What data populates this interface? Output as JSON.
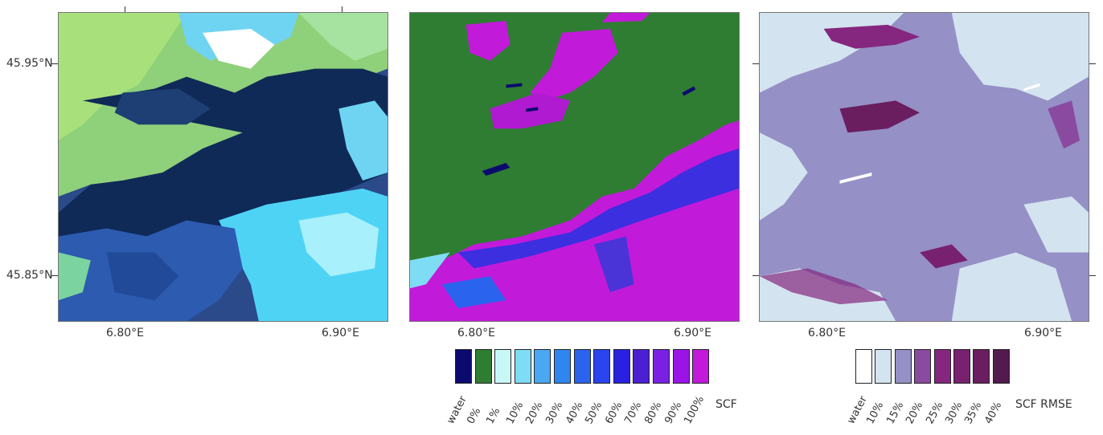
{
  "axes": {
    "lat_labels": [
      "45.95°N",
      "45.85°N"
    ],
    "lon_labels": [
      "6.80°E",
      "6.90°E"
    ]
  },
  "panels": [
    {
      "id": "true-color",
      "content": "satellite image"
    },
    {
      "id": "scf",
      "content": "snow cover fraction map"
    },
    {
      "id": "scf-rmse",
      "content": "snow cover fraction RMSE map"
    }
  ],
  "scf_legend": {
    "title": "SCF",
    "items": [
      {
        "label": "water",
        "color": "#0b0b6e"
      },
      {
        "label": "0%",
        "color": "#2e7d32"
      },
      {
        "label": "1%",
        "color": "#c8f7f7"
      },
      {
        "label": "10%",
        "color": "#7fdcf5"
      },
      {
        "label": "20%",
        "color": "#4aa8f2"
      },
      {
        "label": "30%",
        "color": "#2f86ef"
      },
      {
        "label": "40%",
        "color": "#2a63ee"
      },
      {
        "label": "50%",
        "color": "#2a44ee"
      },
      {
        "label": "60%",
        "color": "#2a20e0"
      },
      {
        "label": "70%",
        "color": "#4b1fd2"
      },
      {
        "label": "80%",
        "color": "#7a20e3"
      },
      {
        "label": "90%",
        "color": "#9b14e6"
      },
      {
        "label": "100%",
        "color": "#c21ad9"
      }
    ]
  },
  "rmse_legend": {
    "title": "SCF RMSE",
    "items": [
      {
        "label": "water",
        "color": "#ffffff"
      },
      {
        "label": "10%",
        "color": "#d3e3ef"
      },
      {
        "label": "15%",
        "color": "#9590c6"
      },
      {
        "label": "20%",
        "color": "#8a4aa0"
      },
      {
        "label": "25%",
        "color": "#85267f"
      },
      {
        "label": "30%",
        "color": "#782170"
      },
      {
        "label": "35%",
        "color": "#6a1e60"
      },
      {
        "label": "40%",
        "color": "#531a4d"
      }
    ]
  }
}
